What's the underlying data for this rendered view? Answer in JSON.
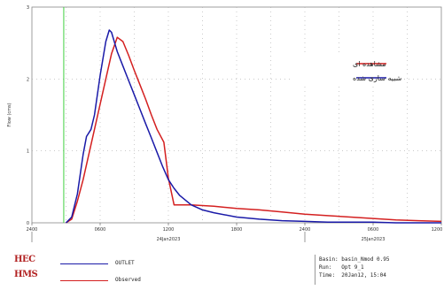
{
  "chart_data": {
    "type": "line",
    "x_ticks": [
      "2400",
      "0600",
      "1200",
      "1800",
      "2400",
      "0600",
      "1200"
    ],
    "date_labels": [
      "24Jan2023",
      "25Jan2023"
    ],
    "y_ticks": [
      "0",
      "1",
      "2",
      "3"
    ],
    "ylabel": "Flow (cms)",
    "xlim": [
      0,
      36
    ],
    "ylim": [
      0,
      3
    ],
    "green_marker_x": 2.8,
    "series": [
      {
        "name": "مشاهده ای",
        "color": "#d42020",
        "x": [
          3.0,
          3.5,
          4.0,
          4.5,
          5.0,
          5.5,
          6.0,
          6.5,
          7.0,
          7.5,
          8.0,
          8.5,
          9.0,
          9.5,
          10.0,
          10.5,
          11.0,
          11.6,
          12.0,
          12.5,
          13.0,
          14.0,
          15.0,
          16.0,
          18.0,
          20.0,
          22.0,
          24.0,
          26.0,
          28.0,
          30.0,
          32.0,
          34.0,
          36.0
        ],
        "y": [
          0.0,
          0.05,
          0.3,
          0.6,
          0.95,
          1.3,
          1.65,
          2.0,
          2.35,
          2.58,
          2.52,
          2.33,
          2.12,
          1.92,
          1.72,
          1.5,
          1.3,
          1.12,
          0.62,
          0.25,
          0.25,
          0.25,
          0.24,
          0.23,
          0.2,
          0.18,
          0.15,
          0.12,
          0.1,
          0.08,
          0.06,
          0.04,
          0.03,
          0.02
        ]
      },
      {
        "name": "شبیه سازی شده",
        "color": "#1a1aa8",
        "x": [
          3.0,
          3.5,
          4.0,
          4.5,
          4.8,
          5.0,
          5.2,
          5.5,
          6.0,
          6.5,
          6.8,
          7.0,
          7.5,
          8.0,
          8.5,
          9.0,
          9.5,
          10.0,
          10.5,
          11.0,
          11.5,
          12.0,
          12.5,
          13.0,
          14.0,
          15.0,
          16.0,
          18.0,
          20.0,
          22.0,
          24.0,
          26.0,
          28.0,
          30.0,
          32.0,
          34.0,
          36.0
        ],
        "y": [
          0.0,
          0.08,
          0.4,
          0.95,
          1.2,
          1.25,
          1.3,
          1.5,
          2.05,
          2.52,
          2.68,
          2.65,
          2.38,
          2.18,
          1.98,
          1.78,
          1.58,
          1.38,
          1.18,
          0.98,
          0.78,
          0.6,
          0.48,
          0.38,
          0.25,
          0.18,
          0.14,
          0.08,
          0.05,
          0.03,
          0.02,
          0.01,
          0.01,
          0.01,
          0.0,
          0.0,
          0.0
        ]
      }
    ]
  },
  "footer": {
    "logo_top": "HEC",
    "logo_bottom": "HMS",
    "legend": [
      {
        "name": "OUTLET",
        "color": "#1a1aa8"
      },
      {
        "name": "Observed",
        "color": "#d42020"
      }
    ],
    "info_lines": [
      "Basin: basin_Nmod 0.95",
      "Run:   Opt 9_1",
      "Time:  20Jan12, 15:04"
    ]
  }
}
